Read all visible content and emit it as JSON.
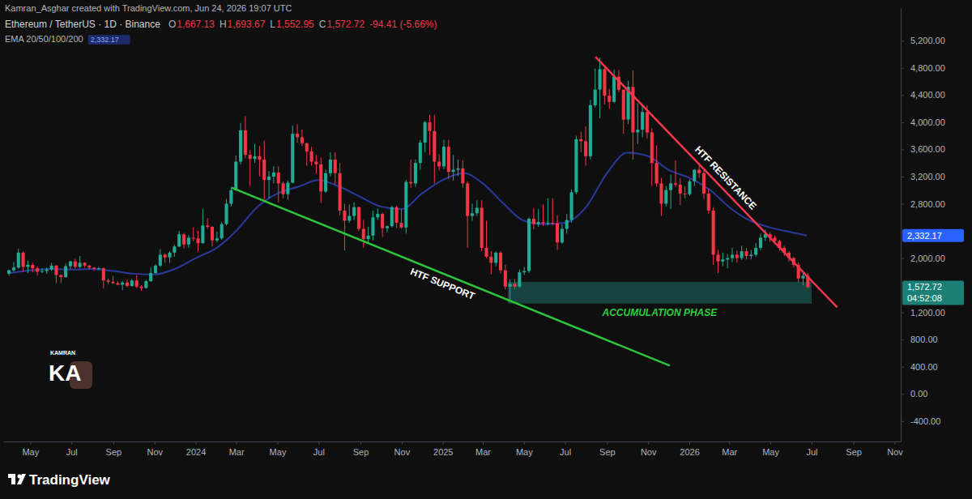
{
  "chart_data": {
    "type": "candlestick",
    "title": "Ethereum / TetherUS · 1D · Binance",
    "subtitle": "Kamran_Asghar created with TradingView.com, Jun 24, 2026 19:07 UTC",
    "ohlc": [
      {
        "key": "O",
        "value": "1,667.13"
      },
      {
        "key": "H",
        "value": "1,693.67"
      },
      {
        "key": "L",
        "value": "1,552.95"
      },
      {
        "key": "C",
        "value": "1,572.72"
      }
    ],
    "change": "-94.41 (-5.66%)",
    "watermark": {
      "top": "KAMRAN",
      "main": "KA"
    },
    "footer": "TradingView",
    "grid": false,
    "xlim": [
      "2023-03-22",
      "2026-11-10"
    ],
    "ylim": [
      -700,
      5680
    ],
    "xticks": [
      {
        "value": "2023-05-01",
        "label": "May"
      },
      {
        "value": "2023-07-01",
        "label": "Jul"
      },
      {
        "value": "2023-09-01",
        "label": "Sep"
      },
      {
        "value": "2023-11-01",
        "label": "Nov"
      },
      {
        "value": "2024-01-01",
        "label": "2024"
      },
      {
        "value": "2024-03-01",
        "label": "Mar"
      },
      {
        "value": "2024-05-01",
        "label": "May"
      },
      {
        "value": "2024-07-01",
        "label": "Jul"
      },
      {
        "value": "2024-09-01",
        "label": "Sep"
      },
      {
        "value": "2024-11-01",
        "label": "Nov"
      },
      {
        "value": "2025-01-01",
        "label": "2025"
      },
      {
        "value": "2025-03-01",
        "label": "Mar"
      },
      {
        "value": "2025-05-01",
        "label": "May"
      },
      {
        "value": "2025-07-01",
        "label": "Jul"
      },
      {
        "value": "2025-09-01",
        "label": "Sep"
      },
      {
        "value": "2025-11-01",
        "label": "Nov"
      },
      {
        "value": "2026-01-01",
        "label": "2026"
      },
      {
        "value": "2026-03-01",
        "label": "Mar"
      },
      {
        "value": "2026-05-01",
        "label": "May"
      },
      {
        "value": "2026-07-01",
        "label": "Jul"
      },
      {
        "value": "2026-09-01",
        "label": "Sep"
      },
      {
        "value": "2026-11-01",
        "label": "Nov"
      }
    ],
    "yticks": [
      {
        "value": -400,
        "label": "-400.00"
      },
      {
        "value": 0,
        "label": "0.00"
      },
      {
        "value": 400,
        "label": "400.00"
      },
      {
        "value": 800,
        "label": "800.00"
      },
      {
        "value": 1200,
        "label": "1,200.00"
      },
      {
        "value": 2000,
        "label": "2,000.00"
      },
      {
        "value": 2800,
        "label": "2,800.00"
      },
      {
        "value": 3200,
        "label": "3,200.00"
      },
      {
        "value": 3600,
        "label": "3,600.00"
      },
      {
        "value": 4000,
        "label": "4,000.00"
      },
      {
        "value": 4400,
        "label": "4,400.00"
      },
      {
        "value": 4800,
        "label": "4,800.00"
      },
      {
        "value": 5200,
        "label": "5,200.00"
      }
    ],
    "x": [
      "2023-03-27",
      "2023-04-03",
      "2023-04-10",
      "2023-04-17",
      "2023-04-24",
      "2023-05-01",
      "2023-05-08",
      "2023-05-15",
      "2023-05-22",
      "2023-05-29",
      "2023-06-05",
      "2023-06-12",
      "2023-06-19",
      "2023-06-26",
      "2023-07-03",
      "2023-07-10",
      "2023-07-17",
      "2023-07-24",
      "2023-07-31",
      "2023-08-07",
      "2023-08-14",
      "2023-08-21",
      "2023-08-28",
      "2023-09-04",
      "2023-09-11",
      "2023-09-18",
      "2023-09-25",
      "2023-10-02",
      "2023-10-09",
      "2023-10-16",
      "2023-10-23",
      "2023-10-30",
      "2023-11-06",
      "2023-11-13",
      "2023-11-20",
      "2023-11-27",
      "2023-12-04",
      "2023-12-11",
      "2023-12-18",
      "2023-12-25",
      "2024-01-01",
      "2024-01-08",
      "2024-01-15",
      "2024-01-22",
      "2024-01-29",
      "2024-02-05",
      "2024-02-12",
      "2024-02-19",
      "2024-02-26",
      "2024-03-04",
      "2024-03-11",
      "2024-03-18",
      "2024-03-25",
      "2024-04-01",
      "2024-04-08",
      "2024-04-15",
      "2024-04-22",
      "2024-04-29",
      "2024-05-06",
      "2024-05-13",
      "2024-05-20",
      "2024-05-27",
      "2024-06-03",
      "2024-06-10",
      "2024-06-17",
      "2024-06-24",
      "2024-07-01",
      "2024-07-08",
      "2024-07-15",
      "2024-07-22",
      "2024-07-29",
      "2024-08-05",
      "2024-08-12",
      "2024-08-19",
      "2024-08-26",
      "2024-09-02",
      "2024-09-09",
      "2024-09-16",
      "2024-09-23",
      "2024-09-30",
      "2024-10-07",
      "2024-10-14",
      "2024-10-21",
      "2024-10-28",
      "2024-11-04",
      "2024-11-11",
      "2024-11-18",
      "2024-11-25",
      "2024-12-02",
      "2024-12-09",
      "2024-12-16",
      "2024-12-23",
      "2024-12-30",
      "2025-01-06",
      "2025-01-13",
      "2025-01-20",
      "2025-01-27",
      "2025-02-03",
      "2025-02-10",
      "2025-02-17",
      "2025-02-24",
      "2025-03-03",
      "2025-03-10",
      "2025-03-17",
      "2025-03-24",
      "2025-03-31",
      "2025-04-07",
      "2025-04-14",
      "2025-04-21",
      "2025-04-28",
      "2025-05-05",
      "2025-05-12",
      "2025-05-19",
      "2025-05-26",
      "2025-06-02",
      "2025-06-09",
      "2025-06-16",
      "2025-06-23",
      "2025-06-30",
      "2025-07-07",
      "2025-07-14",
      "2025-07-21",
      "2025-07-28",
      "2025-08-04",
      "2025-08-11",
      "2025-08-18",
      "2025-08-25",
      "2025-09-01",
      "2025-09-08",
      "2025-09-15",
      "2025-09-22",
      "2025-09-29",
      "2025-10-06",
      "2025-10-13",
      "2025-10-20",
      "2025-10-27",
      "2025-11-03",
      "2025-11-10",
      "2025-11-17",
      "2025-11-24",
      "2025-12-01",
      "2025-12-08",
      "2025-12-15",
      "2025-12-22",
      "2025-12-29",
      "2026-01-05",
      "2026-01-12",
      "2026-01-19",
      "2026-01-26",
      "2026-02-02",
      "2026-02-09",
      "2026-02-16",
      "2026-02-23",
      "2026-03-02",
      "2026-03-09",
      "2026-03-16",
      "2026-03-23",
      "2026-03-30",
      "2026-04-06",
      "2026-04-13",
      "2026-04-20",
      "2026-04-27",
      "2026-05-04",
      "2026-05-11",
      "2026-05-18",
      "2026-05-25",
      "2026-06-01",
      "2026-06-08",
      "2026-06-15",
      "2026-06-22"
    ],
    "open": [
      1770,
      1820,
      1860,
      2080,
      1870,
      1900,
      1850,
      1800,
      1810,
      1830,
      1890,
      1750,
      1720,
      1880,
      1950,
      1870,
      1930,
      1890,
      1860,
      1840,
      1850,
      1670,
      1650,
      1630,
      1610,
      1640,
      1590,
      1670,
      1580,
      1560,
      1660,
      1780,
      1890,
      2050,
      2010,
      2080,
      2170,
      2350,
      2200,
      2300,
      2290,
      2220,
      2480,
      2460,
      2260,
      2290,
      2500,
      2800,
      3000,
      3420,
      3880,
      3520,
      3460,
      3500,
      3450,
      3150,
      3200,
      3260,
      3100,
      2940,
      3110,
      3830,
      3780,
      3690,
      3570,
      3420,
      3380,
      2980,
      3250,
      3450,
      3250,
      2700,
      2550,
      2620,
      2750,
      2430,
      2280,
      2330,
      2600,
      2650,
      2440,
      2470,
      2750,
      2520,
      2450,
      3120,
      3100,
      3400,
      3700,
      4000,
      3870,
      3420,
      3350,
      3640,
      3270,
      3300,
      3320,
      3100,
      2620,
      2660,
      2740,
      2150,
      2020,
      1930,
      2080,
      1820,
      1580,
      1620,
      1580,
      1790,
      1810,
      2580,
      2500,
      2530,
      2510,
      2520,
      2510,
      2230,
      2430,
      2560,
      2970,
      3750,
      3720,
      3500,
      4250,
      4480,
      4780,
      4390,
      4300,
      4670,
      4480,
      4040,
      4520,
      3850,
      3890,
      4150,
      3850,
      3400,
      3100,
      2800,
      3000,
      3100,
      3080,
      2950,
      2940,
      3130,
      3300,
      3250,
      2950,
      2700,
      2050,
      1950,
      1980,
      2000,
      2050,
      2000,
      2100,
      2030,
      2050,
      2150,
      2300,
      2350,
      2300,
      2250,
      2150,
      2080,
      2000,
      1900,
      1700,
      1740
    ],
    "high": [
      1830,
      1940,
      2140,
      2100,
      1960,
      1930,
      1880,
      1850,
      1860,
      1930,
      1900,
      1760,
      1920,
      1960,
      1990,
      2030,
      1940,
      1900,
      1870,
      1870,
      1860,
      1700,
      1740,
      1660,
      1660,
      1680,
      1690,
      1750,
      1600,
      1680,
      1860,
      1910,
      2130,
      2070,
      2100,
      2200,
      2400,
      2370,
      2340,
      2450,
      2400,
      2720,
      2590,
      2470,
      2390,
      2530,
      2870,
      3040,
      3510,
      3990,
      4090,
      3590,
      3680,
      3650,
      3730,
      3280,
      3350,
      3350,
      3130,
      3140,
      3950,
      3970,
      3890,
      3700,
      3640,
      3520,
      3480,
      3300,
      3560,
      3560,
      3400,
      2800,
      2790,
      2820,
      2760,
      2560,
      2460,
      2700,
      2730,
      2670,
      2480,
      2770,
      2770,
      2720,
      3150,
      3450,
      3450,
      3740,
      4020,
      4110,
      4110,
      3530,
      3740,
      3740,
      3520,
      3450,
      3440,
      3130,
      2800,
      2850,
      2850,
      2550,
      2100,
      2100,
      2100,
      1900,
      1690,
      1690,
      1830,
      1870,
      2600,
      2740,
      2720,
      2790,
      2880,
      2880,
      2630,
      2500,
      2650,
      3010,
      3800,
      3860,
      3940,
      4330,
      4790,
      4950,
      4830,
      4490,
      4770,
      4770,
      4480,
      4610,
      4760,
      4280,
      4260,
      4250,
      3910,
      3660,
      3180,
      3060,
      3230,
      3440,
      3180,
      3060,
      3160,
      3310,
      3400,
      3290,
      3020,
      2750,
      2120,
      2080,
      2060,
      2150,
      2110,
      2180,
      2150,
      2120,
      2220,
      2360,
      2420,
      2380,
      2330,
      2270,
      2180,
      2100,
      2020,
      1940,
      1800,
      1780
    ],
    "low": [
      1740,
      1800,
      1840,
      1800,
      1780,
      1790,
      1740,
      1780,
      1770,
      1810,
      1630,
      1630,
      1710,
      1840,
      1850,
      1850,
      1860,
      1840,
      1810,
      1820,
      1550,
      1620,
      1620,
      1600,
      1530,
      1570,
      1580,
      1560,
      1520,
      1550,
      1650,
      1770,
      1870,
      1930,
      1930,
      2020,
      2160,
      2140,
      2150,
      2250,
      2100,
      2210,
      2430,
      2170,
      2230,
      2270,
      2480,
      2760,
      2990,
      3380,
      3470,
      3060,
      3400,
      3200,
      2860,
      2880,
      3100,
      2820,
      2880,
      2860,
      3100,
      3700,
      3650,
      3360,
      3360,
      3240,
      2810,
      2960,
      3200,
      3080,
      2630,
      2110,
      2520,
      2560,
      2400,
      2150,
      2230,
      2260,
      2560,
      2310,
      2380,
      2450,
      2440,
      2430,
      2360,
      3030,
      3050,
      3300,
      3560,
      3520,
      3100,
      3290,
      3310,
      3160,
      3140,
      3210,
      3030,
      2150,
      2550,
      2620,
      2100,
      2000,
      1760,
      1880,
      1770,
      1540,
      1385,
      1540,
      1560,
      1750,
      1780,
      2420,
      2460,
      2470,
      2480,
      2480,
      2120,
      2210,
      2360,
      2520,
      2940,
      3560,
      3360,
      3450,
      4220,
      4060,
      4260,
      4200,
      4280,
      4440,
      3830,
      3970,
      3450,
      3680,
      3780,
      3760,
      3060,
      3050,
      2620,
      2760,
      2720,
      3050,
      2780,
      2880,
      2920,
      3060,
      3180,
      2870,
      2650,
      1900,
      1780,
      1880,
      1850,
      1940,
      1930,
      1970,
      1980,
      1980,
      2020,
      2120,
      2250,
      2240,
      2200,
      2110,
      2030,
      1950,
      1860,
      1640,
      1600,
      1552.95
    ],
    "close": [
      1820,
      1860,
      2080,
      1870,
      1900,
      1850,
      1800,
      1810,
      1830,
      1890,
      1750,
      1720,
      1880,
      1950,
      1870,
      1930,
      1890,
      1860,
      1840,
      1850,
      1670,
      1650,
      1630,
      1610,
      1640,
      1590,
      1670,
      1580,
      1560,
      1660,
      1780,
      1890,
      2050,
      2010,
      2080,
      2170,
      2350,
      2200,
      2300,
      2290,
      2220,
      2480,
      2460,
      2260,
      2290,
      2500,
      2800,
      3000,
      3420,
      3880,
      3520,
      3460,
      3500,
      3450,
      3150,
      3200,
      3260,
      3100,
      2940,
      3110,
      3830,
      3780,
      3690,
      3570,
      3420,
      3380,
      2980,
      3250,
      3450,
      3250,
      2700,
      2550,
      2620,
      2750,
      2430,
      2280,
      2330,
      2600,
      2650,
      2440,
      2470,
      2750,
      2520,
      2450,
      3120,
      3100,
      3400,
      3700,
      4000,
      3870,
      3420,
      3350,
      3640,
      3270,
      3300,
      3320,
      3100,
      2620,
      2660,
      2740,
      2150,
      2020,
      1930,
      2080,
      1820,
      1580,
      1620,
      1580,
      1790,
      1810,
      2580,
      2500,
      2530,
      2510,
      2520,
      2510,
      2230,
      2430,
      2560,
      2970,
      3750,
      3720,
      3500,
      4250,
      4480,
      4780,
      4390,
      4300,
      4670,
      4480,
      4040,
      4520,
      3850,
      3890,
      4150,
      3850,
      3400,
      3100,
      2800,
      3000,
      3100,
      3080,
      2950,
      2940,
      3130,
      3300,
      3250,
      2950,
      2700,
      2050,
      1950,
      1980,
      2000,
      2050,
      2000,
      2100,
      2030,
      2050,
      2150,
      2300,
      2350,
      2300,
      2250,
      2150,
      2080,
      2000,
      1900,
      1700,
      1740,
      1572.72
    ],
    "price_tag": {
      "label": "1,572.72",
      "countdown": "04:52:08"
    },
    "series": [
      {
        "name": "EMA 20/50/100/200",
        "type": "line",
        "color": "#2a3a9c",
        "last_label": "2,332.17",
        "x": [
          "2023-04-01",
          "2023-05-01",
          "2023-06-01",
          "2023-07-01",
          "2023-08-01",
          "2023-09-01",
          "2023-10-01",
          "2023-11-01",
          "2023-12-01",
          "2024-01-01",
          "2024-02-01",
          "2024-03-01",
          "2024-04-01",
          "2024-05-01",
          "2024-06-01",
          "2024-07-01",
          "2024-08-01",
          "2024-09-01",
          "2024-10-01",
          "2024-11-01",
          "2024-12-01",
          "2025-01-01",
          "2025-02-01",
          "2025-03-01",
          "2025-04-01",
          "2025-05-01",
          "2025-06-01",
          "2025-07-01",
          "2025-08-01",
          "2025-09-01",
          "2025-10-01",
          "2025-11-01",
          "2025-12-01",
          "2026-01-01",
          "2026-02-01",
          "2026-03-01",
          "2026-04-01",
          "2026-05-01",
          "2026-06-01",
          "2026-06-24"
        ],
        "values": [
          1780,
          1820,
          1840,
          1830,
          1840,
          1810,
          1770,
          1760,
          1840,
          2000,
          2150,
          2400,
          2750,
          2950,
          3050,
          3150,
          3050,
          2900,
          2760,
          2720,
          2950,
          3150,
          3250,
          3100,
          2800,
          2550,
          2500,
          2520,
          2750,
          3250,
          3550,
          3500,
          3300,
          3180,
          3000,
          2750,
          2550,
          2450,
          2380,
          2332.17
        ]
      }
    ],
    "trend_lines": [
      {
        "label": "HTF SUPPORT",
        "color": "#2ec43c",
        "x": [
          "2024-02-23",
          "2025-12-03"
        ],
        "y": [
          3036,
          417
        ]
      },
      {
        "label": "HTF RESISTANCE",
        "color": "#f2364f",
        "x": [
          "2025-08-15",
          "2026-08-08"
        ],
        "y": [
          4964,
          1274
        ]
      }
    ],
    "zones": [
      {
        "label": "ACCUMULATION PHASE",
        "color": "#26a69a",
        "x": [
          "2025-04-07",
          "2026-07-01"
        ],
        "y": [
          1330,
          1650
        ]
      }
    ]
  }
}
